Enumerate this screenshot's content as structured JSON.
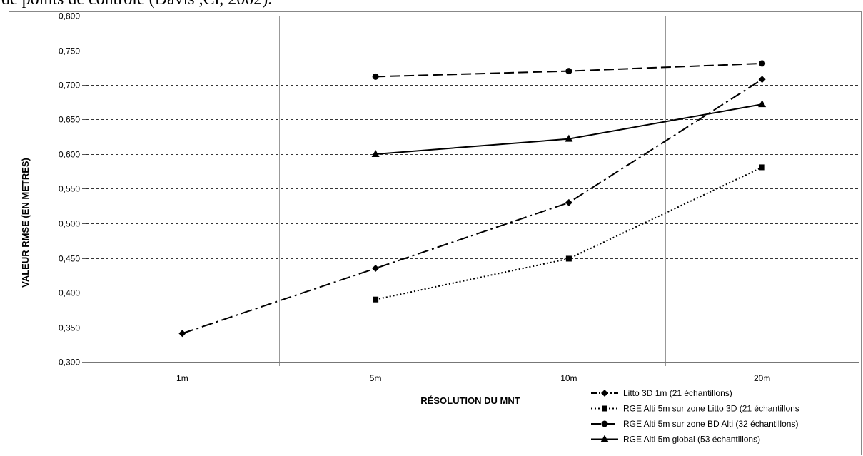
{
  "caption_text": "de points de contrôle (Davis ,Cl, 2002).",
  "chart_data": {
    "type": "line",
    "categories": [
      "1m",
      "5m",
      "10m",
      "20m"
    ],
    "xlabel": "RÉSOLUTION DU MNT",
    "ylabel": "VALEUR RMSE (EN METRES)",
    "ylim": [
      0.3,
      0.8
    ],
    "yticks": [
      "0,300",
      "0,350",
      "0,400",
      "0,450",
      "0,500",
      "0,550",
      "0,600",
      "0,650",
      "0,700",
      "0,750",
      "0,800"
    ],
    "ystep": 0.05,
    "grid": "horizontal-dashed",
    "legend_position": "bottom-right",
    "series": [
      {
        "name": "Litto 3D 1m (21 échantillons)",
        "marker": "diamond",
        "dash": "dash-dot",
        "values": [
          0.341,
          0.435,
          0.53,
          0.708
        ]
      },
      {
        "name": "RGE Alti 5m sur zone Litto 3D (21 échantillons",
        "marker": "square",
        "dash": "dotted",
        "values": [
          null,
          0.39,
          0.449,
          0.581
        ]
      },
      {
        "name": "RGE Alti 5m sur zone BD Alti (32 échantillons)",
        "marker": "circle",
        "dash": "dashed",
        "values": [
          null,
          0.712,
          0.72,
          0.731
        ]
      },
      {
        "name": "RGE Alti 5m global (53 échantillons)",
        "marker": "triangle",
        "dash": "solid",
        "values": [
          null,
          0.6,
          0.622,
          0.672
        ]
      }
    ]
  }
}
